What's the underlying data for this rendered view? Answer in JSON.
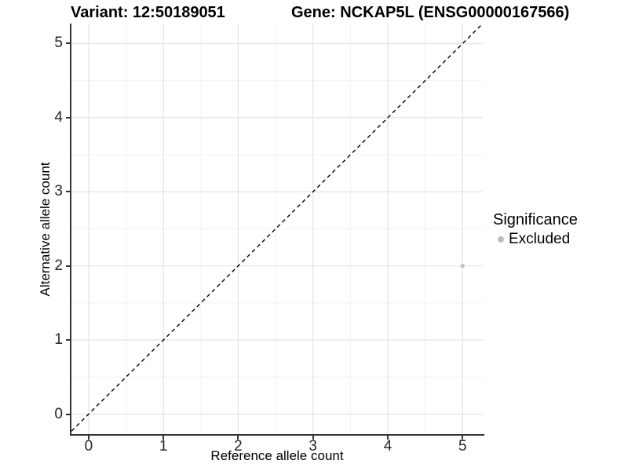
{
  "header": {
    "left_title": "Variant: 12:50189051",
    "right_title": "Gene: NCKAP5L (ENSG00000167566)"
  },
  "chart_data": {
    "type": "scatter",
    "title_left": "Variant: 12:50189051",
    "title_right": "Gene: NCKAP5L (ENSG00000167566)",
    "xlabel": "Reference allele count",
    "ylabel": "Alternative allele count",
    "xlim": [
      -0.23,
      5.27
    ],
    "ylim": [
      -0.27,
      5.27
    ],
    "xticks": [
      0,
      1,
      2,
      3,
      4,
      5
    ],
    "yticks": [
      0,
      1,
      2,
      3,
      4,
      5
    ],
    "grid": true,
    "minor_gridlines": true,
    "identity_line": {
      "style": "dashed",
      "slope": 1,
      "intercept": 0,
      "color": "#000000"
    },
    "series": [
      {
        "name": "Excluded",
        "color": "#bebebe",
        "point_radius": 2.6,
        "points": [
          {
            "x": 5,
            "y": 2
          }
        ]
      }
    ],
    "legend": {
      "title": "Significance",
      "position": "right",
      "items": [
        {
          "label": "Excluded",
          "color": "#bdbdbd"
        }
      ]
    }
  },
  "colors": {
    "background": "#ffffff",
    "grid_major": "#e3e3e3",
    "grid_minor": "#f1f1f1",
    "axis_line": "#333333",
    "tick_label": "#262626",
    "dashed_line": "#000000",
    "point": "#bebebe"
  }
}
